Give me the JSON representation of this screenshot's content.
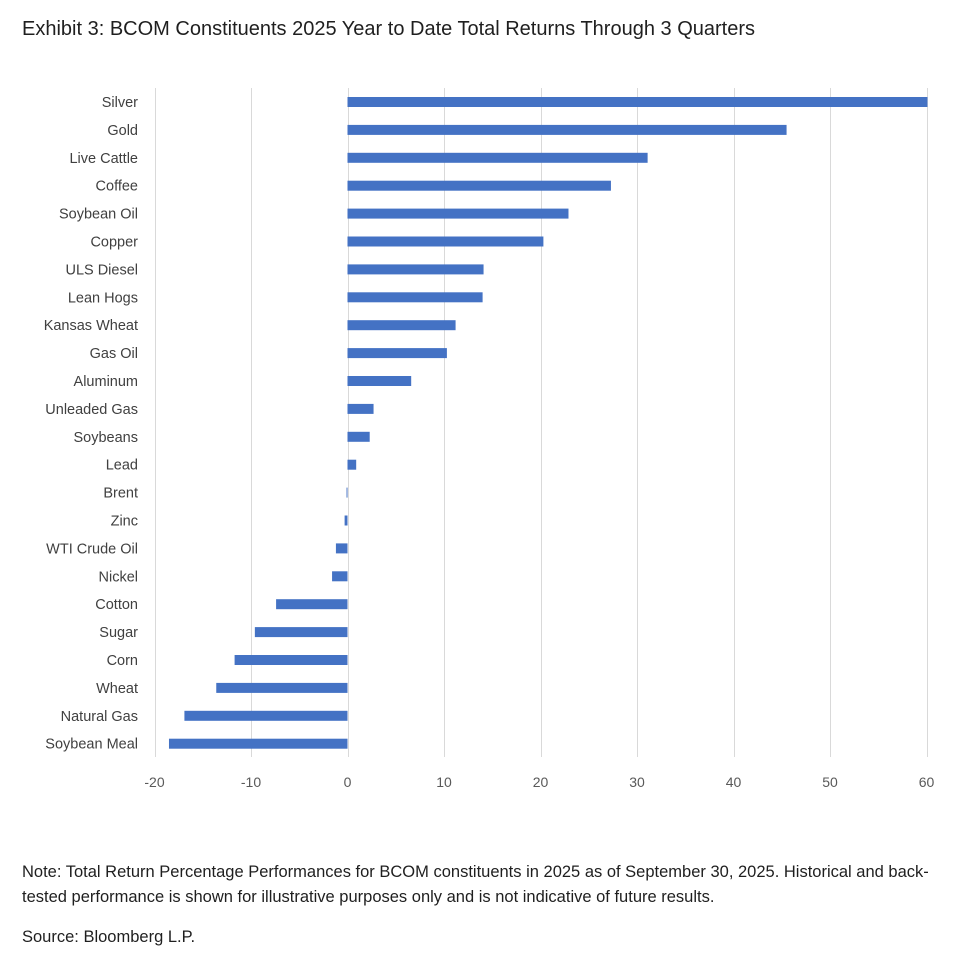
{
  "title": "Exhibit 3: BCOM Constituents 2025 Year to Date Total Returns Through 3 Quarters",
  "note": "Note: Total Return Percentage Performances for BCOM constituents in 2025 as of September 30, 2025. Historical and back-tested performance is shown for illustrative purposes only and is not indicative of future results.",
  "source": "Source: Bloomberg L.P.",
  "colors": {
    "bar": "#4472c4",
    "grid": "#d9d9d9",
    "axis_text": "#595959",
    "label_text": "#404040"
  },
  "chart_data": {
    "type": "bar",
    "orientation": "horizontal",
    "title": "Exhibit 3: BCOM Constituents 2025 Year to Date Total Returns Through 3 Quarters",
    "xlabel": "",
    "ylabel": "",
    "xlim": [
      -20,
      60
    ],
    "xticks": [
      -20,
      -10,
      0,
      10,
      20,
      30,
      40,
      50,
      60
    ],
    "xtick_labels": [
      "-20",
      "-10",
      "0",
      "10",
      "20",
      "30",
      "40",
      "50",
      "60"
    ],
    "grid": "vertical",
    "categories": [
      "Silver",
      "Gold",
      "Live Cattle",
      "Coffee",
      "Soybean Oil",
      "Copper",
      "ULS Diesel",
      "Lean Hogs",
      "Kansas Wheat",
      "Gas Oil",
      "Aluminum",
      "Unleaded Gas",
      "Soybeans",
      "Lead",
      "Brent",
      "Zinc",
      "WTI Crude Oil",
      "Nickel",
      "Cotton",
      "Sugar",
      "Corn",
      "Wheat",
      "Natural Gas",
      "Soybean Meal"
    ],
    "values": [
      60.1,
      45.5,
      31.1,
      27.3,
      22.9,
      20.3,
      14.1,
      14.0,
      11.2,
      10.3,
      6.6,
      2.7,
      2.3,
      0.9,
      -0.1,
      -0.3,
      -1.2,
      -1.6,
      -7.4,
      -9.6,
      -11.7,
      -13.6,
      -16.9,
      -18.5
    ]
  }
}
